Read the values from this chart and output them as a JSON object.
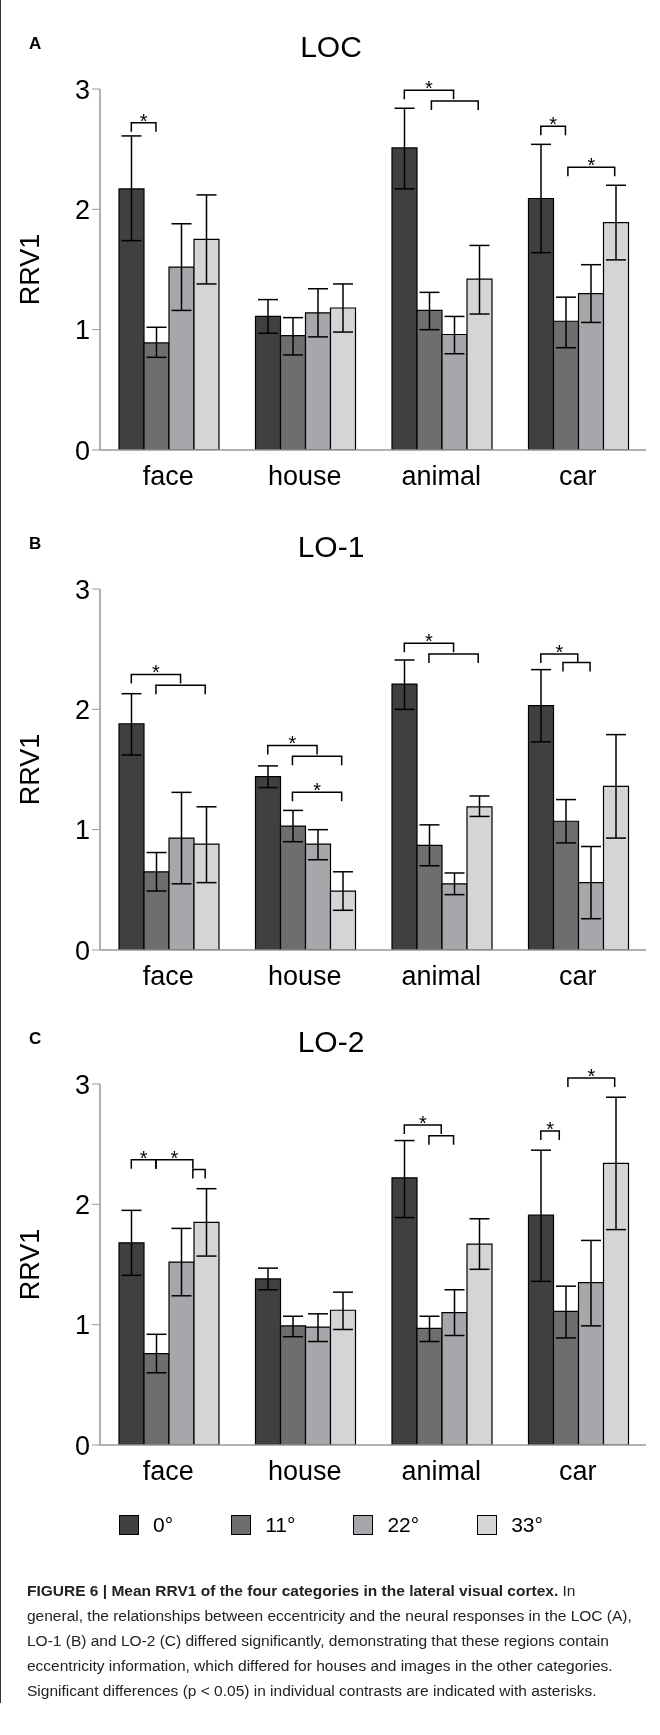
{
  "chart_data": [
    {
      "type": "bar",
      "title": "LOC",
      "ylabel": "RRV1",
      "categories": [
        "face",
        "house",
        "animal",
        "car"
      ],
      "ylim": [
        0,
        3
      ],
      "yticks": [
        0,
        1,
        2,
        3
      ],
      "legend": false,
      "annotations": [
        "A",
        "*",
        "*",
        "*",
        "*"
      ],
      "series": [
        {
          "color": "#404040",
          "values": [
            2.17,
            1.11,
            2.51,
            2.09
          ],
          "errors": [
            [
              1.74,
              2.61
            ],
            [
              0.97,
              1.25
            ],
            [
              2.17,
              2.84
            ],
            [
              1.64,
              2.54
            ]
          ]
        },
        {
          "color": "#6e6e6e",
          "values": [
            0.89,
            0.95,
            1.16,
            1.07
          ],
          "errors": [
            [
              0.77,
              1.02
            ],
            [
              0.79,
              1.1
            ],
            [
              1.0,
              1.31
            ],
            [
              0.85,
              1.27
            ]
          ]
        },
        {
          "color": "#a6a7aa",
          "values": [
            1.52,
            1.14,
            0.96,
            1.3
          ],
          "errors": [
            [
              1.16,
              1.88
            ],
            [
              0.94,
              1.34
            ],
            [
              0.8,
              1.11
            ],
            [
              1.06,
              1.54
            ]
          ]
        },
        {
          "color": "#d4d5d7",
          "values": [
            1.75,
            1.18,
            1.42,
            1.89
          ],
          "errors": [
            [
              1.38,
              2.12
            ],
            [
              0.98,
              1.38
            ],
            [
              1.13,
              1.7
            ],
            [
              1.58,
              2.2
            ]
          ]
        }
      ]
    },
    {
      "type": "bar",
      "title": "LO-1",
      "ylabel": "RRV1",
      "categories": [
        "face",
        "house",
        "animal",
        "car"
      ],
      "ylim": [
        0,
        3
      ],
      "yticks": [
        0,
        1,
        2,
        3
      ],
      "legend": false,
      "annotations": [
        "B",
        "*",
        "*",
        "*",
        "*",
        "*"
      ],
      "series": [
        {
          "color": "#404040",
          "values": [
            1.88,
            1.44,
            2.21,
            2.03
          ],
          "errors": [
            [
              1.62,
              2.13
            ],
            [
              1.35,
              1.53
            ],
            [
              2.0,
              2.41
            ],
            [
              1.73,
              2.33
            ]
          ]
        },
        {
          "color": "#6e6e6e",
          "values": [
            0.65,
            1.03,
            0.87,
            1.07
          ],
          "errors": [
            [
              0.49,
              0.81
            ],
            [
              0.9,
              1.16
            ],
            [
              0.7,
              1.04
            ],
            [
              0.89,
              1.25
            ]
          ]
        },
        {
          "color": "#a6a7aa",
          "values": [
            0.93,
            0.88,
            0.55,
            0.56
          ],
          "errors": [
            [
              0.55,
              1.31
            ],
            [
              0.75,
              1.0
            ],
            [
              0.46,
              0.64
            ],
            [
              0.26,
              0.86
            ]
          ]
        },
        {
          "color": "#d4d5d7",
          "values": [
            0.88,
            0.49,
            1.19,
            1.36
          ],
          "errors": [
            [
              0.56,
              1.19
            ],
            [
              0.33,
              0.65
            ],
            [
              1.11,
              1.28
            ],
            [
              0.93,
              1.79
            ]
          ]
        }
      ]
    },
    {
      "type": "bar",
      "title": "LO-2",
      "ylabel": "RRV1",
      "categories": [
        "face",
        "house",
        "animal",
        "car"
      ],
      "ylim": [
        0,
        3
      ],
      "yticks": [
        0,
        1,
        2,
        3
      ],
      "legend": "bottom",
      "annotations": [
        "C",
        "*",
        "*",
        "*",
        "*",
        "*",
        "FIGURE 6 | Mean RRV1 of the four categories in the lateral visual cortex.",
        "In general, the relationships between eccentricity and the neural responses in the LOC (A), LO-1 (B) and LO-2 (C) differed significantly, demonstrating that these regions contain eccentricity information, which differed for houses and images in the other categories. Significant differences (p < 0.05) in individual contrasts are indicated with asterisks."
      ],
      "series": [
        {
          "name": "0°",
          "color": "#404040",
          "values": [
            1.68,
            1.38,
            2.22,
            1.91
          ],
          "errors": [
            [
              1.41,
              1.95
            ],
            [
              1.29,
              1.47
            ],
            [
              1.89,
              2.53
            ],
            [
              1.36,
              2.45
            ]
          ]
        },
        {
          "name": "11°",
          "color": "#6e6e6e",
          "values": [
            0.76,
            0.99,
            0.97,
            1.11
          ],
          "errors": [
            [
              0.6,
              0.92
            ],
            [
              0.9,
              1.07
            ],
            [
              0.86,
              1.07
            ],
            [
              0.89,
              1.32
            ]
          ]
        },
        {
          "name": "22°",
          "color": "#a6a7aa",
          "values": [
            1.52,
            0.98,
            1.1,
            1.35
          ],
          "errors": [
            [
              1.24,
              1.8
            ],
            [
              0.86,
              1.09
            ],
            [
              0.91,
              1.29
            ],
            [
              0.99,
              1.7
            ]
          ]
        },
        {
          "name": "33°",
          "color": "#d4d5d7",
          "values": [
            1.85,
            1.12,
            1.67,
            2.34
          ],
          "errors": [
            [
              1.57,
              2.13
            ],
            [
              0.96,
              1.27
            ],
            [
              1.46,
              1.88
            ],
            [
              1.79,
              2.89
            ]
          ]
        }
      ]
    }
  ]
}
